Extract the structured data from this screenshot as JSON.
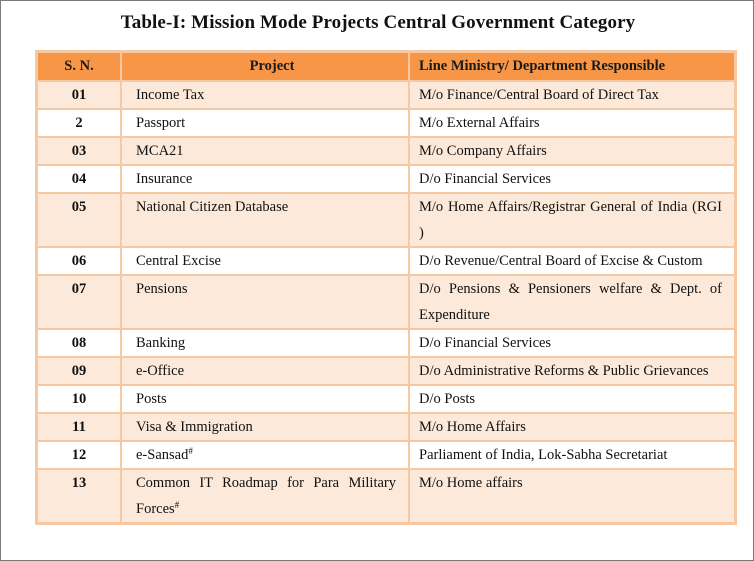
{
  "title": "Table-I: Mission Mode Projects Central Government Category",
  "table": {
    "headers": {
      "sn": "S. N.",
      "project": "Project",
      "ministry": "Line Ministry/ Department Responsible"
    },
    "rows": [
      {
        "sn": "01",
        "project": "Income Tax",
        "ministry": "M/o Finance/Central Board of Direct Tax"
      },
      {
        "sn": "2",
        "project": "Passport",
        "ministry": "M/o External Affairs"
      },
      {
        "sn": "03",
        "project": "MCA21",
        "ministry": "M/o Company Affairs"
      },
      {
        "sn": "04",
        "project": "Insurance",
        "ministry": "D/o Financial Services"
      },
      {
        "sn": "05",
        "project": "National Citizen Database",
        "ministry": "M/o Home Affairs/Registrar General of India (RGI )"
      },
      {
        "sn": "06",
        "project": "Central Excise",
        "ministry": "D/o Revenue/Central Board of Excise & Custom"
      },
      {
        "sn": "07",
        "project": "Pensions",
        "ministry": "D/o Pensions & Pensioners welfare & Dept. of Expenditure"
      },
      {
        "sn": "08",
        "project": "Banking",
        "ministry": "D/o Financial Services"
      },
      {
        "sn": "09",
        "project": "e-Office",
        "ministry": "D/o Administrative Reforms & Public Grievances"
      },
      {
        "sn": "10",
        "project": "Posts",
        "ministry": "D/o Posts"
      },
      {
        "sn": "11",
        "project": "Visa & Immigration",
        "ministry": "M/o Home Affairs"
      },
      {
        "sn": "12",
        "project": "e-Sansad",
        "project_sup": "#",
        "ministry": "Parliament of India, Lok-Sabha Secretariat"
      },
      {
        "sn": "13",
        "project": "Common IT Roadmap for Para Military Forces",
        "project_sup": "#",
        "ministry": "M/o Home affairs"
      }
    ]
  }
}
